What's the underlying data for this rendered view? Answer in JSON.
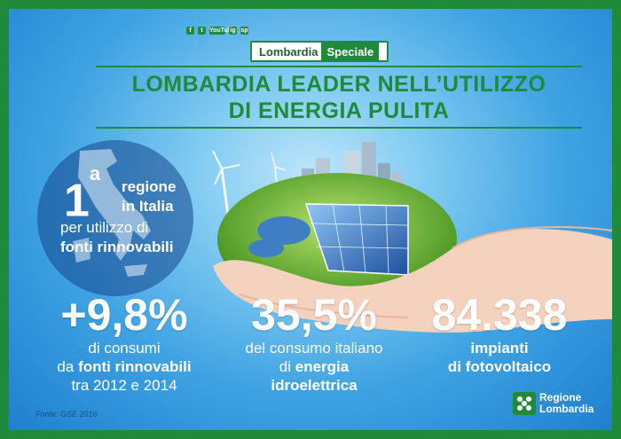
{
  "social": [
    "f",
    "t",
    "YouTube",
    "ig",
    "sp"
  ],
  "brand": {
    "part1": "Lombardia",
    "part2": "Speciale"
  },
  "title": {
    "line1": "LOMBARDIA LEADER NELL’UTILIZZO",
    "line2": "DI ENERGIA PULITA"
  },
  "rank": {
    "number": "1",
    "sup": "a",
    "line1": "regione",
    "line2": "in Italia",
    "line3": "per utilizzo di",
    "line4": "fonti rinnovabili"
  },
  "stats": [
    {
      "value": "+9,8%",
      "line1": "di consumi",
      "line2_pre": "da ",
      "line2_bold": "fonti rinnovabili",
      "line3": "tra 2012 e 2014"
    },
    {
      "value": "35,5%",
      "line1": "del consumo italiano",
      "line2_pre": "di ",
      "line2_bold": "energia",
      "line3": "idroelettrica"
    },
    {
      "value": "84.338",
      "line1": "impianti",
      "line2": "di fotovoltaico"
    }
  ],
  "source": "Fonte: GSE 2016",
  "logo": {
    "line1": "Regione",
    "line2": "Lombardia"
  },
  "colors": {
    "green": "#1f8a3a",
    "sky": "#3fa3e3"
  }
}
